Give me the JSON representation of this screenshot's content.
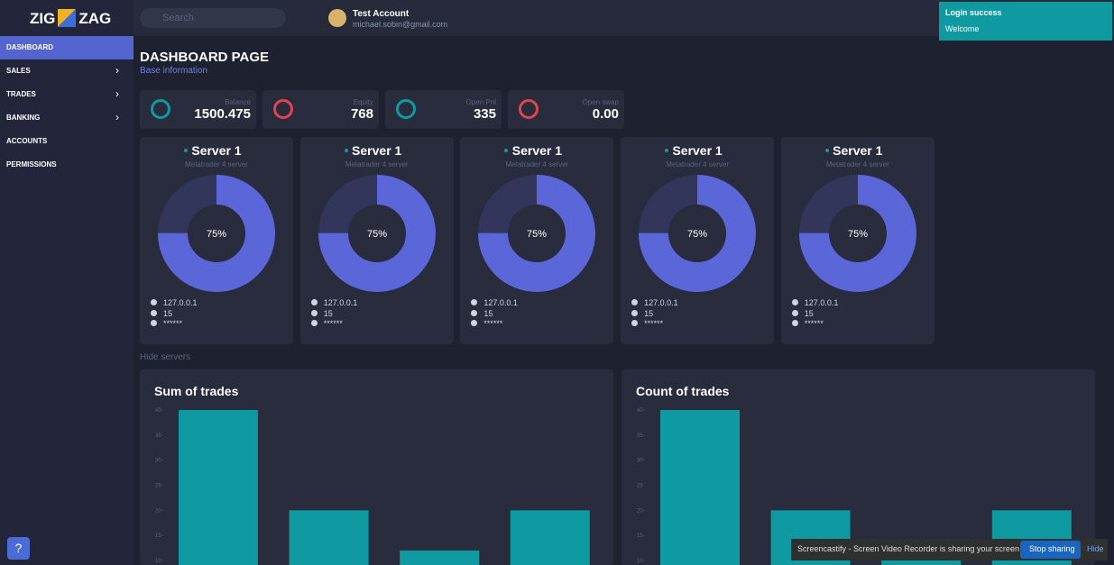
{
  "header": {
    "logo_left": "ZIG",
    "logo_right": "ZAG",
    "search_placeholder": "Search",
    "account_name": "Test Account",
    "account_email": "michael.sobin@gmail.com"
  },
  "toast": {
    "title": "Login success",
    "message": "Welcome"
  },
  "sidebar": {
    "items": [
      "DASHBOARD",
      "SALES",
      "TRADES",
      "BANKING",
      "ACCOUNTS",
      "PERMISSIONS"
    ]
  },
  "page": {
    "title": "DASHBOARD PAGE",
    "subtitle": "Base information",
    "hide_servers": "Hide servers"
  },
  "stats": [
    {
      "label": "Balance",
      "value": "1500.475"
    },
    {
      "label": "Equity",
      "value": "768"
    },
    {
      "label": "Open Pnl",
      "value": "335"
    },
    {
      "label": "Open swap",
      "value": "0.00"
    }
  ],
  "servers": [
    {
      "name": "Server 1",
      "subtitle": "Metatrader 4 server",
      "ip": "127.0.0.1",
      "count": "15",
      "password": "******",
      "load": 75,
      "load_label": "75%"
    },
    {
      "name": "Server 1",
      "subtitle": "Metatrader 4 server",
      "ip": "127.0.0.1",
      "count": "15",
      "password": "******",
      "load": 75,
      "load_label": "75%"
    },
    {
      "name": "Server 1",
      "subtitle": "Metatrader 4 server",
      "ip": "127.0.0.1",
      "count": "15",
      "password": "******",
      "load": 75,
      "load_label": "75%"
    },
    {
      "name": "Server 1",
      "subtitle": "Metatrader 4 server",
      "ip": "127.0.0.1",
      "count": "15",
      "password": "******",
      "load": 75,
      "load_label": "75%"
    },
    {
      "name": "Server 1",
      "subtitle": "Metatrader 4 server",
      "ip": "127.0.0.1",
      "count": "15",
      "password": "******",
      "load": 75,
      "load_label": "75%"
    }
  ],
  "chart_data": [
    {
      "type": "bar",
      "title": "Sum of trades",
      "categories": [
        null,
        null,
        null,
        null
      ],
      "values": [
        40,
        20,
        12,
        20
      ],
      "color": "#0e9aa0",
      "ylim": [
        10,
        40
      ],
      "yticks": [
        10,
        15,
        20,
        25,
        30,
        35,
        40
      ]
    },
    {
      "type": "bar",
      "title": "Count of trades",
      "categories": [
        null,
        null,
        null,
        null
      ],
      "values": [
        40,
        20,
        12,
        20
      ],
      "color": "#0e9aa0",
      "ylim": [
        10,
        40
      ],
      "yticks": [
        10,
        15,
        20,
        25,
        30,
        35,
        40
      ]
    }
  ],
  "banner": {
    "message": "Screencastify - Screen Video Recorder is sharing your screen",
    "stop": "Stop sharing",
    "hide": "Hide"
  }
}
